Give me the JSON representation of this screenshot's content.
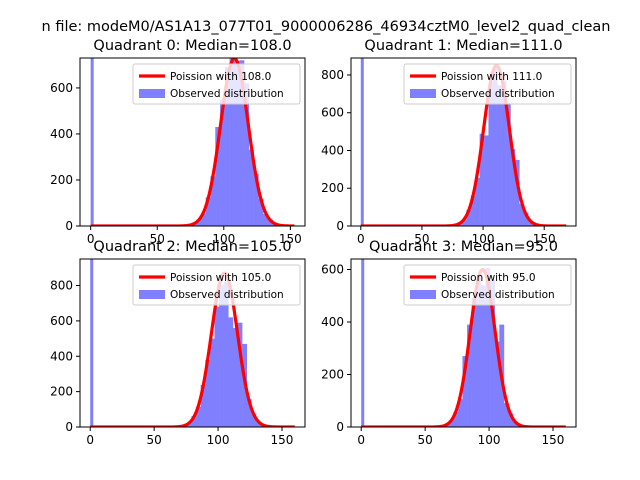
{
  "figure": {
    "suptitle": "n file: modeM0/AS1A13_077T01_9000006286_46934cztM0_level2_quad_clean"
  },
  "colors": {
    "hist": "#8080ff",
    "poisson": "#ff0000"
  },
  "chart_data": [
    {
      "type": "bar",
      "title": "Quadrant 0: Median=108.0",
      "xlim": [
        -8,
        161
      ],
      "ylim": [
        0,
        730
      ],
      "xticks": [
        "0",
        "50",
        "100",
        "150"
      ],
      "yticks": [
        "0",
        "200",
        "400",
        "600"
      ],
      "mean": 108,
      "peak": 728,
      "zero_bin": 728,
      "extra_bins": [
        [
          112,
          720
        ],
        [
          104,
          690
        ],
        [
          118,
          620
        ],
        [
          96,
          430
        ]
      ],
      "legend": {
        "location": "upper right",
        "entries": [
          "Poission with 108.0",
          "Observed distribution"
        ]
      }
    },
    {
      "type": "bar",
      "title": "Quadrant 1: Median=111.0",
      "xlim": [
        -8,
        176
      ],
      "ylim": [
        0,
        890
      ],
      "xticks": [
        "0",
        "50",
        "100",
        "150"
      ],
      "yticks": [
        "0",
        "200",
        "400",
        "600",
        "800"
      ],
      "mean": 111,
      "peak": 850,
      "zero_bin": 890,
      "extra_bins": [
        [
          107,
          760
        ],
        [
          116,
          770
        ],
        [
          121,
          650
        ],
        [
          101,
          480
        ],
        [
          126,
          350
        ]
      ],
      "legend": {
        "location": "upper right",
        "entries": [
          "Poission with 111.0",
          "Observed distribution"
        ]
      }
    },
    {
      "type": "bar",
      "title": "Quadrant 2: Median=105.0",
      "xlim": [
        -8,
        168
      ],
      "ylim": [
        0,
        950
      ],
      "xticks": [
        "0",
        "50",
        "100",
        "150"
      ],
      "yticks": [
        "0",
        "200",
        "400",
        "600",
        "800"
      ],
      "mean": 105,
      "peak": 870,
      "zero_bin": 950,
      "extra_bins": [
        [
          100,
          680
        ],
        [
          106,
          820
        ],
        [
          111,
          620
        ],
        [
          95,
          500
        ],
        [
          116,
          590
        ],
        [
          121,
          470
        ]
      ],
      "legend": {
        "location": "upper right",
        "entries": [
          "Poission with 105.0",
          "Observed distribution"
        ]
      }
    },
    {
      "type": "bar",
      "title": "Quadrant 3: Median=95.0",
      "xlim": [
        -8,
        168
      ],
      "ylim": [
        0,
        640
      ],
      "xticks": [
        "0",
        "50",
        "100",
        "150"
      ],
      "yticks": [
        "0",
        "200",
        "400",
        "600"
      ],
      "mean": 95,
      "peak": 600,
      "zero_bin": 640,
      "extra_bins": [
        [
          81,
          270
        ],
        [
          84,
          390
        ],
        [
          101,
          560
        ],
        [
          108,
          390
        ]
      ],
      "legend": {
        "location": "upper right",
        "entries": [
          "Poission with 95.0",
          "Observed distribution"
        ]
      }
    }
  ]
}
